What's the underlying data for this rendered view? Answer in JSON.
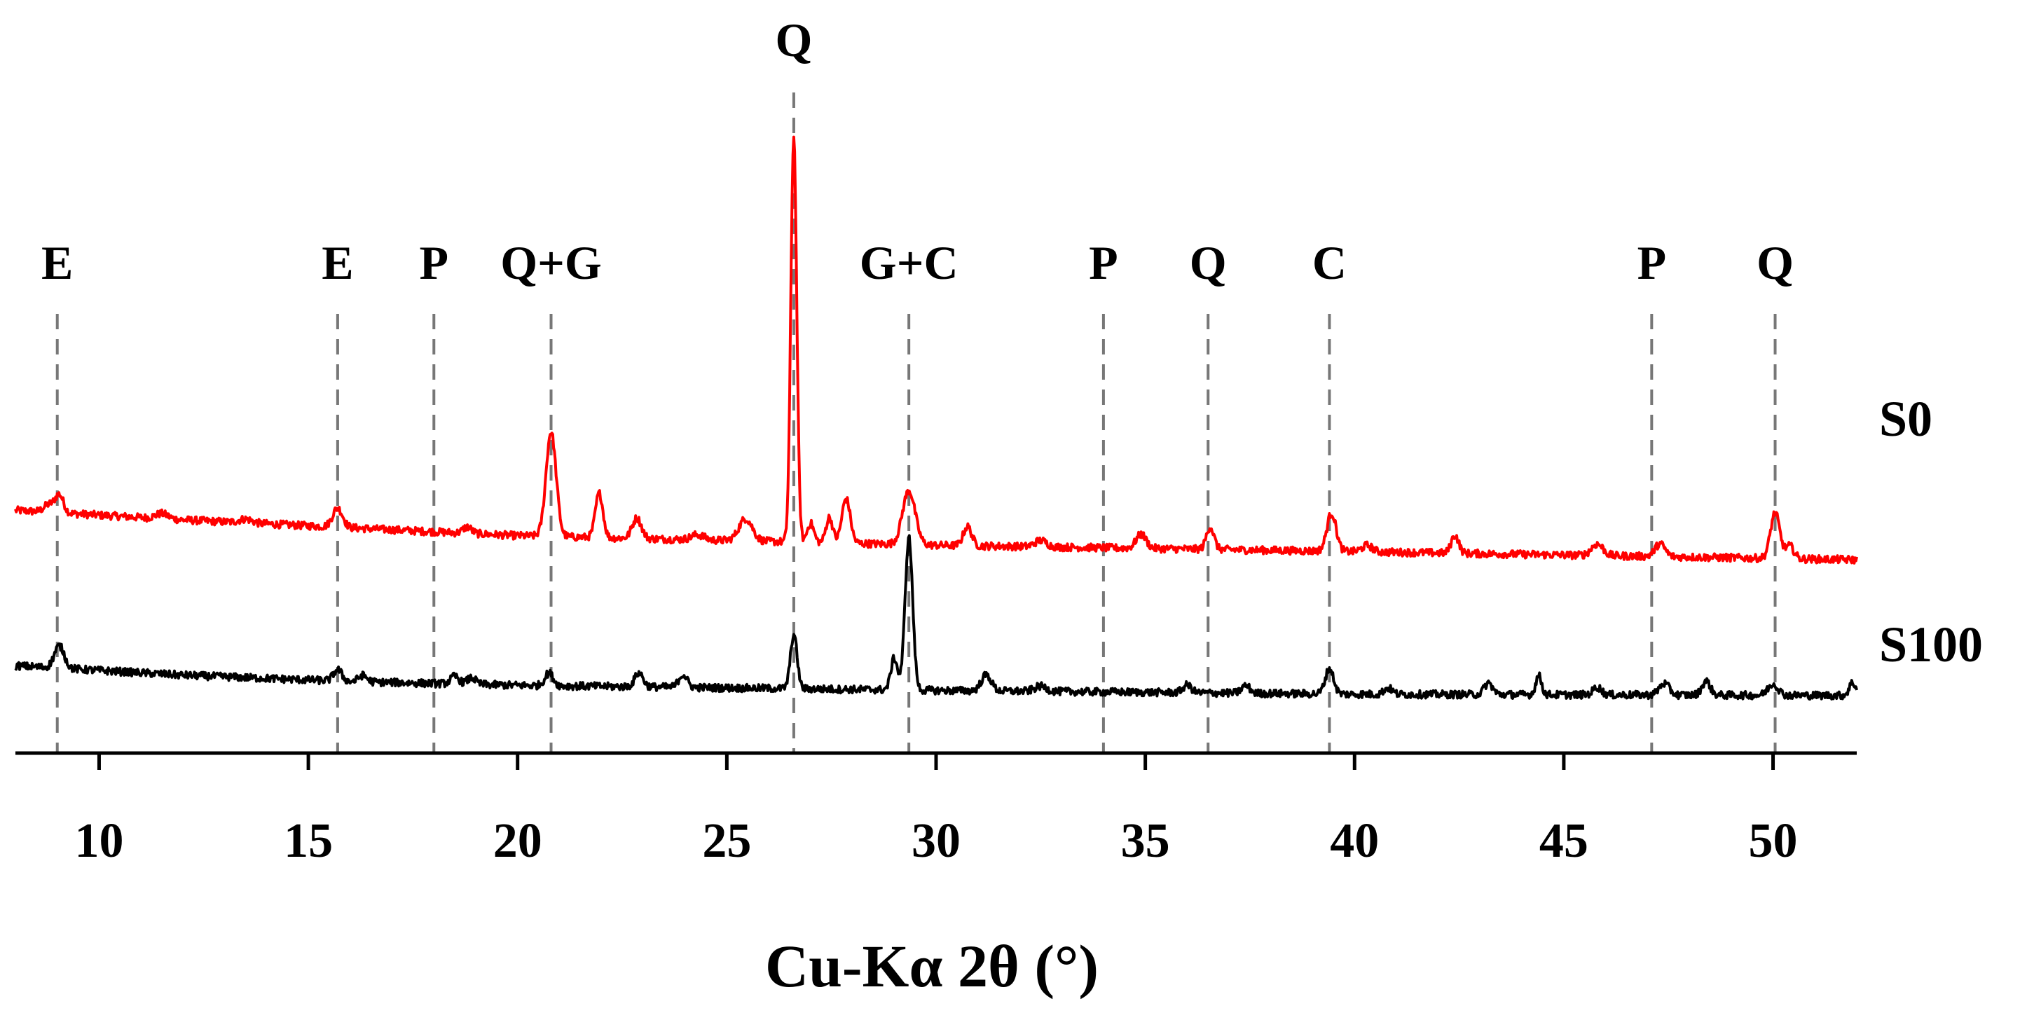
{
  "chart_data": {
    "type": "line",
    "title": "",
    "xlabel": "Cu-Kα 2θ (°)",
    "ylabel": "",
    "xlim": [
      8,
      52
    ],
    "x_ticks": [
      10,
      15,
      20,
      25,
      30,
      35,
      40,
      45,
      50
    ],
    "x_tick_labels": [
      "10",
      "15",
      "20",
      "25",
      "30",
      "35",
      "40",
      "45",
      "50"
    ],
    "y_axis_visible": false,
    "grid": false,
    "legend": "none",
    "series": [
      {
        "name": "S0",
        "color": "#ff0000",
        "baseline": [
          [
            8,
            0.3
          ],
          [
            12,
            0.285
          ],
          [
            20,
            0.26
          ],
          [
            30,
            0.245
          ],
          [
            40,
            0.235
          ],
          [
            52,
            0.222
          ]
        ],
        "peaks": [
          [
            8.8,
            0.012,
            0.12
          ],
          [
            9.05,
            0.028,
            0.1
          ],
          [
            11.5,
            0.008,
            0.15
          ],
          [
            13.5,
            0.006,
            0.15
          ],
          [
            15.7,
            0.03,
            0.12
          ],
          [
            18.8,
            0.01,
            0.1
          ],
          [
            20.8,
            0.165,
            0.12
          ],
          [
            21.95,
            0.07,
            0.09
          ],
          [
            22.85,
            0.032,
            0.11
          ],
          [
            24.3,
            0.008,
            0.15
          ],
          [
            25.45,
            0.035,
            0.16
          ],
          [
            26.6,
            0.64,
            0.07
          ],
          [
            27.0,
            0.03,
            0.08
          ],
          [
            27.45,
            0.04,
            0.08
          ],
          [
            27.85,
            0.07,
            0.1
          ],
          [
            29.35,
            0.085,
            0.15
          ],
          [
            30.75,
            0.03,
            0.1
          ],
          [
            32.5,
            0.01,
            0.14
          ],
          [
            34.9,
            0.022,
            0.12
          ],
          [
            36.55,
            0.035,
            0.09
          ],
          [
            39.45,
            0.06,
            0.11
          ],
          [
            40.3,
            0.01,
            0.12
          ],
          [
            42.4,
            0.028,
            0.09
          ],
          [
            45.8,
            0.018,
            0.14
          ],
          [
            47.3,
            0.02,
            0.12
          ],
          [
            50.05,
            0.072,
            0.11
          ],
          [
            50.4,
            0.02,
            0.1
          ]
        ]
      },
      {
        "name": "S100",
        "color": "#000000",
        "baseline": [
          [
            8,
            0.055
          ],
          [
            12,
            0.04
          ],
          [
            16,
            0.03
          ],
          [
            20,
            0.024
          ],
          [
            30,
            0.016
          ],
          [
            40,
            0.01
          ],
          [
            52,
            0.008
          ]
        ],
        "peaks": [
          [
            9.05,
            0.035,
            0.12
          ],
          [
            15.7,
            0.018,
            0.1
          ],
          [
            16.3,
            0.01,
            0.1
          ],
          [
            18.5,
            0.012,
            0.1
          ],
          [
            18.9,
            0.01,
            0.1
          ],
          [
            20.75,
            0.02,
            0.1
          ],
          [
            22.9,
            0.022,
            0.1
          ],
          [
            23.95,
            0.02,
            0.1
          ],
          [
            26.6,
            0.085,
            0.08
          ],
          [
            29.0,
            0.05,
            0.08
          ],
          [
            29.35,
            0.24,
            0.09
          ],
          [
            31.2,
            0.025,
            0.12
          ],
          [
            32.5,
            0.008,
            0.14
          ],
          [
            36.0,
            0.012,
            0.1
          ],
          [
            37.4,
            0.012,
            0.1
          ],
          [
            39.4,
            0.04,
            0.1
          ],
          [
            40.8,
            0.01,
            0.1
          ],
          [
            43.2,
            0.018,
            0.1
          ],
          [
            44.4,
            0.03,
            0.07
          ],
          [
            45.8,
            0.012,
            0.1
          ],
          [
            47.4,
            0.018,
            0.12
          ],
          [
            48.4,
            0.022,
            0.1
          ],
          [
            50.0,
            0.018,
            0.12
          ],
          [
            51.9,
            0.02,
            0.08
          ]
        ]
      }
    ],
    "peak_markers": [
      {
        "x": 9.0,
        "label": "E"
      },
      {
        "x": 15.7,
        "label": "E"
      },
      {
        "x": 18.0,
        "label": "P"
      },
      {
        "x": 20.8,
        "label": "Q+G"
      },
      {
        "x": 26.6,
        "label": "Q"
      },
      {
        "x": 29.35,
        "label": "G+C"
      },
      {
        "x": 34.0,
        "label": "P"
      },
      {
        "x": 36.5,
        "label": "Q"
      },
      {
        "x": 39.4,
        "label": "C"
      },
      {
        "x": 47.1,
        "label": "P"
      },
      {
        "x": 50.05,
        "label": "Q"
      }
    ]
  }
}
